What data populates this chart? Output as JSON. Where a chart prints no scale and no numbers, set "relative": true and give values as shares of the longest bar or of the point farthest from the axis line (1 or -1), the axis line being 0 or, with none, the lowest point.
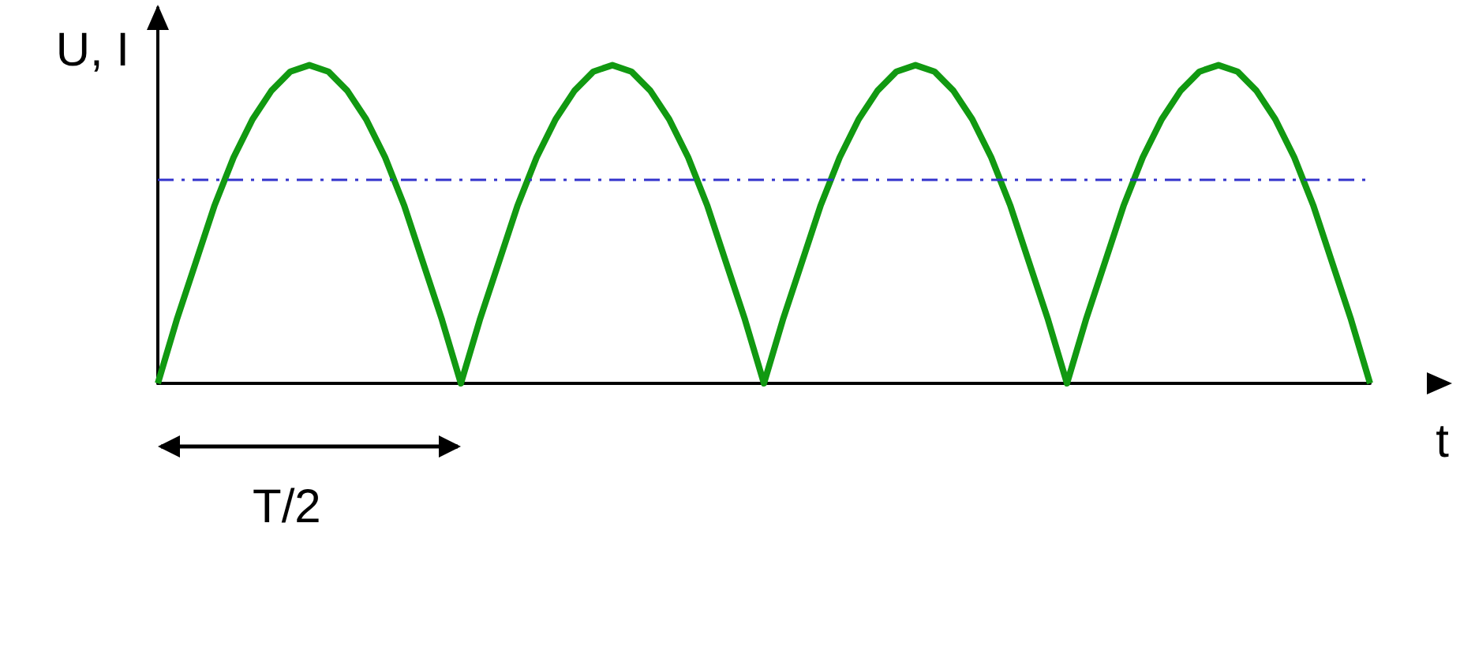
{
  "chart_data": {
    "type": "line",
    "relative": true,
    "xlabel": "t",
    "ylabel": "U, I",
    "marker": "none",
    "annotations": [
      "T/2"
    ],
    "categories": [
      null,
      null,
      null,
      null,
      null,
      null,
      null,
      null,
      null,
      null,
      null,
      null,
      null,
      null,
      null,
      null,
      null,
      null,
      null,
      null,
      null,
      null,
      null,
      null,
      null,
      null,
      null,
      null,
      null,
      null,
      null,
      null,
      null,
      null,
      null,
      null,
      null,
      null,
      null,
      null,
      null,
      null,
      null,
      null,
      null,
      null,
      null,
      null,
      null,
      null,
      null,
      null,
      null,
      null,
      null,
      null,
      null,
      null,
      null,
      null,
      null,
      null,
      null,
      null,
      null
    ],
    "series": [
      {
        "color": "#119911",
        "values": [
          0,
          0.2,
          0.38,
          0.56,
          0.71,
          0.83,
          0.92,
          0.98,
          1,
          0.98,
          0.92,
          0.83,
          0.71,
          0.56,
          0.38,
          0.2,
          0,
          0.2,
          0.38,
          0.56,
          0.71,
          0.83,
          0.92,
          0.98,
          1,
          0.98,
          0.92,
          0.83,
          0.71,
          0.56,
          0.38,
          0.2,
          0,
          0.2,
          0.38,
          0.56,
          0.71,
          0.83,
          0.92,
          0.98,
          1,
          0.98,
          0.92,
          0.83,
          0.71,
          0.56,
          0.38,
          0.2,
          0,
          0.2,
          0.38,
          0.56,
          0.71,
          0.83,
          0.92,
          0.98,
          1,
          0.98,
          0.92,
          0.83,
          0.71,
          0.56,
          0.38,
          0.2,
          0
        ]
      }
    ],
    "ref_lines": [
      {
        "axis": "y",
        "value": 0.64,
        "color": "#3333cc",
        "line_style": "dashed"
      }
    ]
  }
}
